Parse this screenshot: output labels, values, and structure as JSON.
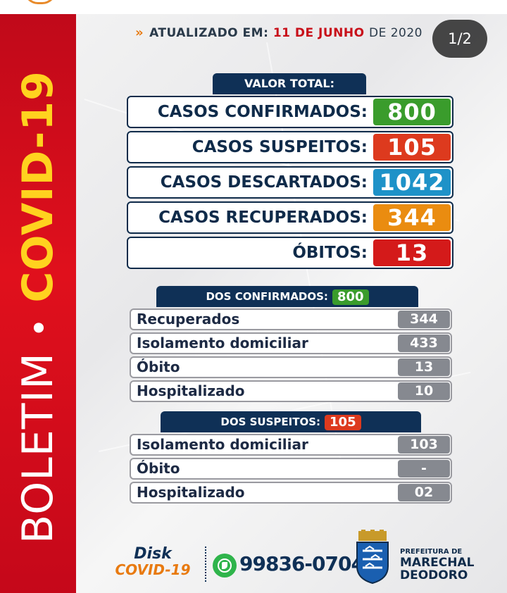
{
  "pager": "1/2",
  "sidebar": {
    "word1": "BOLETIM",
    "separator": "•",
    "word2": "COVID-19"
  },
  "updated": {
    "chevron": "»",
    "prefix": "ATUALIZADO EM:",
    "date": "11 DE JUNHO",
    "year": "DE 2020"
  },
  "total": {
    "header": "VALOR TOTAL:",
    "rows": [
      {
        "label": "CASOS CONFIRMADOS:",
        "value": "800",
        "color": "#3a9c2c"
      },
      {
        "label": "CASOS SUSPEITOS:",
        "value": "105",
        "color": "#dd3a1e"
      },
      {
        "label": "CASOS DESCARTADOS:",
        "value": "1042",
        "color": "#1e92c8"
      },
      {
        "label": "CASOS RECUPERADOS:",
        "value": "344",
        "color": "#ea8c10"
      },
      {
        "label": "ÓBITOS:",
        "value": "13",
        "color": "#d41a1a"
      }
    ]
  },
  "confirmed": {
    "header": "DOS CONFIRMADOS:",
    "count": "800",
    "count_color": "#3a9c2c",
    "rows": [
      {
        "label": "Recuperados",
        "value": "344"
      },
      {
        "label": "Isolamento domiciliar",
        "value": "433"
      },
      {
        "label": "Óbito",
        "value": "13"
      },
      {
        "label": "Hospitalizado",
        "value": "10"
      }
    ]
  },
  "suspected": {
    "header": "DOS SUSPEITOS:",
    "count": "105",
    "count_color": "#dd3a1e",
    "rows": [
      {
        "label": "Isolamento domiciliar",
        "value": "103"
      },
      {
        "label": "Óbito",
        "value": "-"
      },
      {
        "label": "Hospitalizado",
        "value": "02"
      }
    ]
  },
  "footer": {
    "disk_line1": "Disk",
    "disk_line2": "COVID-19",
    "phone": "99836-0704",
    "org_line1": "PREFEITURA DE",
    "org_line2": "MARECHAL",
    "org_line3": "DEODORO"
  },
  "colors": {
    "navy": "#0f3056",
    "sidebar_red": "#d80f1c",
    "sidebar_yellow": "#ffd21f",
    "whatsapp": "#2fb44b"
  },
  "icons": [
    "chevron-right-double-icon",
    "whatsapp-icon",
    "city-crest-icon"
  ]
}
